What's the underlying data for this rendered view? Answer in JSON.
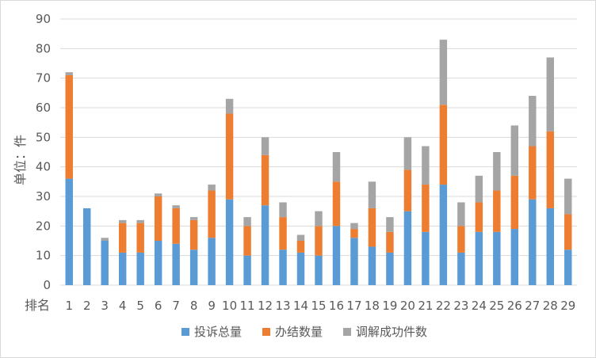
{
  "chart_data": {
    "type": "bar",
    "stacked": true,
    "title": "",
    "xlabel": "排名",
    "ylabel": "单位：件",
    "ylim": [
      0,
      90
    ],
    "yticks": [
      0,
      10,
      20,
      30,
      40,
      50,
      60,
      70,
      80,
      90
    ],
    "grid": true,
    "legend_position": "bottom",
    "categories": [
      "1",
      "2",
      "3",
      "4",
      "5",
      "6",
      "7",
      "8",
      "9",
      "10",
      "11",
      "12",
      "13",
      "14",
      "15",
      "16",
      "17",
      "18",
      "19",
      "20",
      "21",
      "22",
      "23",
      "24",
      "25",
      "26",
      "27",
      "28",
      "29"
    ],
    "series": [
      {
        "name": "投诉总量",
        "color": "#5b9bd5",
        "values": [
          36,
          26,
          15,
          11,
          11,
          15,
          14,
          12,
          16,
          29,
          10,
          27,
          12,
          11,
          10,
          20,
          16,
          13,
          11,
          25,
          18,
          34,
          11,
          18,
          18,
          19,
          29,
          26,
          12
        ]
      },
      {
        "name": "办结数量",
        "color": "#ed7d31",
        "values": [
          35,
          0,
          0,
          10,
          10,
          15,
          12,
          10,
          16,
          29,
          10,
          17,
          11,
          4,
          10,
          15,
          3,
          13,
          7,
          14,
          16,
          27,
          9,
          10,
          14,
          18,
          18,
          26,
          12
        ]
      },
      {
        "name": "调解成功件数",
        "color": "#a5a5a5",
        "values": [
          1,
          0,
          1,
          1,
          1,
          1,
          1,
          1,
          2,
          5,
          3,
          6,
          5,
          2,
          5,
          10,
          2,
          9,
          5,
          11,
          13,
          22,
          8,
          9,
          13,
          17,
          17,
          25,
          12
        ]
      }
    ]
  }
}
